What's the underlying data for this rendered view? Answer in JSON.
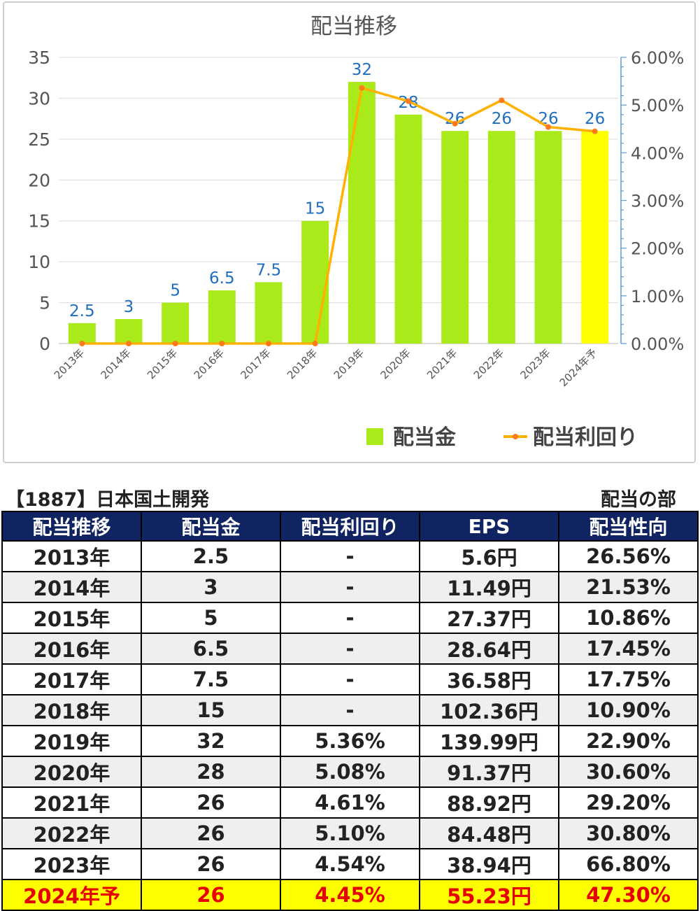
{
  "chart_data": {
    "type": "bar",
    "title": "配当推移",
    "categories": [
      "2013年",
      "2014年",
      "2015年",
      "2016年",
      "2017年",
      "2018年",
      "2019年",
      "2020年",
      "2021年",
      "2022年",
      "2023年",
      "2024年予"
    ],
    "value_labels": [
      "2.5",
      "3",
      "5",
      "6.5",
      "7.5",
      "15",
      "32",
      "28",
      "26",
      "26",
      "26",
      "26"
    ],
    "series": [
      {
        "name": "配当金",
        "type": "bar",
        "axis": "left",
        "values": [
          2.5,
          3,
          5,
          6.5,
          7.5,
          15,
          32,
          28,
          26,
          26,
          26,
          26
        ],
        "color": "#aaea1a",
        "highlight_last_color": "#ffff00"
      },
      {
        "name": "配当利回り",
        "type": "line",
        "axis": "right",
        "values": [
          0,
          0,
          0,
          0,
          0,
          0,
          0.0536,
          0.0508,
          0.0461,
          0.051,
          0.0454,
          0.0445
        ],
        "color": "#ffb000",
        "marker_color": "#ff7a1a"
      }
    ],
    "y_left": {
      "min": 0,
      "max": 35,
      "ticks": [
        "0",
        "5",
        "10",
        "15",
        "20",
        "25",
        "30",
        "35"
      ]
    },
    "y_right": {
      "min": 0,
      "max": 0.06,
      "ticks": [
        "0.00%",
        "1.00%",
        "2.00%",
        "3.00%",
        "4.00%",
        "5.00%",
        "6.00%"
      ]
    },
    "grid": true,
    "legend_position": "bottom-right",
    "label_color": "#1f6fc0"
  },
  "caption": {
    "left": "【1887】日本国土開発",
    "right": "配当の部"
  },
  "table": {
    "headers": [
      "配当推移",
      "配当金",
      "配当利回り",
      "EPS",
      "配当性向"
    ],
    "rows": [
      [
        "2013年",
        "2.5",
        "-",
        "5.6円",
        "26.56%"
      ],
      [
        "2014年",
        "3",
        "-",
        "11.49円",
        "21.53%"
      ],
      [
        "2015年",
        "5",
        "-",
        "27.37円",
        "10.86%"
      ],
      [
        "2016年",
        "6.5",
        "-",
        "28.64円",
        "17.45%"
      ],
      [
        "2017年",
        "7.5",
        "-",
        "36.58円",
        "17.75%"
      ],
      [
        "2018年",
        "15",
        "-",
        "102.36円",
        "10.90%"
      ],
      [
        "2019年",
        "32",
        "5.36%",
        "139.99円",
        "22.90%"
      ],
      [
        "2020年",
        "28",
        "5.08%",
        "91.37円",
        "30.60%"
      ],
      [
        "2021年",
        "26",
        "4.61%",
        "88.92円",
        "29.20%"
      ],
      [
        "2022年",
        "26",
        "5.10%",
        "84.48円",
        "30.80%"
      ],
      [
        "2023年",
        "26",
        "4.54%",
        "38.94円",
        "66.80%"
      ],
      [
        "2024年予",
        "26",
        "4.45%",
        "55.23円",
        "47.30%"
      ]
    ]
  }
}
